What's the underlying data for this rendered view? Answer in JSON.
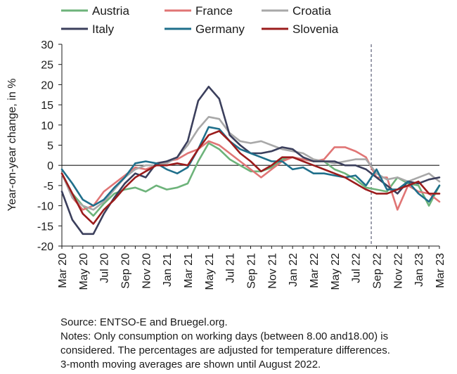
{
  "chart_data": {
    "type": "line",
    "ylabel": "Year-on-year change, in %",
    "xlabel": "",
    "ylim": [
      -20,
      30
    ],
    "yticks": [
      -20,
      -15,
      -10,
      -5,
      0,
      5,
      10,
      15,
      20,
      25,
      30
    ],
    "x": [
      "Mar 20",
      "Apr 20",
      "May 20",
      "Jun 20",
      "Jul 20",
      "Aug 20",
      "Sep 20",
      "Oct 20",
      "Nov 20",
      "Dec 20",
      "Jan 21",
      "Feb 21",
      "Mar 21",
      "Apr 21",
      "May 21",
      "Jun 21",
      "Jul 21",
      "Aug 21",
      "Sep 21",
      "Oct 21",
      "Nov 21",
      "Dec 21",
      "Jan 22",
      "Feb 22",
      "Mar 22",
      "Apr 22",
      "May 22",
      "Jun 22",
      "Jul 22",
      "Aug 22",
      "Sep 22",
      "Oct 22",
      "Nov 22",
      "Dec 22",
      "Jan 23",
      "Feb 23",
      "Mar 23"
    ],
    "xtick_labels": [
      "Mar 20",
      "May 20",
      "Jul 20",
      "Sep 20",
      "Nov 20",
      "Jan 21",
      "Mar 21",
      "May 21",
      "Jul 21",
      "Sep 21",
      "Nov 21",
      "Jan 22",
      "Mar 22",
      "May 22",
      "Jul 22",
      "Sep 22",
      "Nov 22",
      "Jan 23",
      "Mar 23"
    ],
    "vline_after": "Aug 22",
    "grid": false,
    "legend_position": "top",
    "series": [
      {
        "name": "Austria",
        "color": "#6db37a",
        "values": [
          -2,
          -7,
          -10,
          -12.5,
          -9.5,
          -7,
          -6,
          -5.5,
          -6.5,
          -5,
          -6,
          -5.5,
          -4.5,
          1,
          5.5,
          4,
          1.5,
          0,
          -1.5,
          -1.5,
          -0.5,
          1.5,
          2,
          1.5,
          1,
          1,
          -1,
          -2,
          -3.5,
          -5.5,
          -6,
          -6.5,
          -3,
          -4.5,
          -5,
          -10,
          -5
        ]
      },
      {
        "name": "France",
        "color": "#e07575",
        "values": [
          -2,
          -8,
          -11,
          -10,
          -6.5,
          -4.5,
          -2.5,
          -0.5,
          -1,
          0,
          1,
          1.5,
          3,
          4,
          6,
          5,
          3,
          1,
          -1,
          -3,
          -1,
          1,
          2,
          1.5,
          1,
          1.5,
          4.5,
          4.5,
          3.5,
          2,
          -3,
          -3,
          -11,
          -5,
          -6.5,
          -7,
          -9
        ]
      },
      {
        "name": "Croatia",
        "color": "#a8a8a8",
        "values": [
          -2,
          -8,
          -10,
          -11,
          -9,
          -6,
          -3,
          -1,
          0,
          0,
          0.5,
          2,
          5,
          9,
          12,
          11.5,
          8,
          6,
          5.5,
          6,
          5,
          4,
          3.5,
          3,
          1.5,
          1,
          0.5,
          1,
          1.5,
          1.5,
          -2,
          -3.5,
          -3,
          -4,
          -3,
          -2,
          -4
        ]
      },
      {
        "name": "Italy",
        "color": "#3b3f5c",
        "values": [
          -6.5,
          -13.5,
          -17,
          -17,
          -12,
          -8,
          -4.5,
          -2,
          -3,
          0.5,
          1,
          2,
          6,
          16,
          19.5,
          16.5,
          7.5,
          5,
          3,
          3,
          3.5,
          4.5,
          4,
          2,
          1,
          1,
          1,
          0,
          0,
          -1,
          -3,
          -5,
          -7,
          -4,
          -4.5,
          -3.5,
          -3
        ]
      },
      {
        "name": "Germany",
        "color": "#1f6f8b",
        "values": [
          -1,
          -4.5,
          -8.5,
          -10,
          -8.5,
          -5.5,
          -3,
          0.5,
          1,
          0.5,
          -1,
          -2,
          -0.5,
          4,
          9.5,
          9,
          6,
          4,
          3,
          2,
          1,
          1,
          -1,
          -0.5,
          -2,
          -2,
          -2.5,
          -3,
          -2.5,
          -5,
          -1,
          -6,
          -6,
          -4,
          -7,
          -9,
          -5
        ]
      },
      {
        "name": "Slovenia",
        "color": "#9b1c1c",
        "values": [
          -2,
          -7,
          -12,
          -14.5,
          -11,
          -8.5,
          -5.5,
          -3,
          -1.5,
          0,
          0,
          0.5,
          0,
          4,
          7.5,
          8.5,
          6,
          3,
          1,
          -1.5,
          0,
          2,
          2,
          1,
          0,
          -1,
          -2,
          -3,
          -4.5,
          -6,
          -7,
          -7,
          -6,
          -5,
          -4,
          -7,
          -7
        ]
      }
    ]
  },
  "notes": {
    "source": "Source: ENTSO-E and Bruegel.org.",
    "line1": "Notes: Only consumption on working days (between 8.00 and18.00) is",
    "line2": "considered. The percentages are adjusted for temperature differences.",
    "line3": "3-month moving averages are shown until August 2022."
  }
}
